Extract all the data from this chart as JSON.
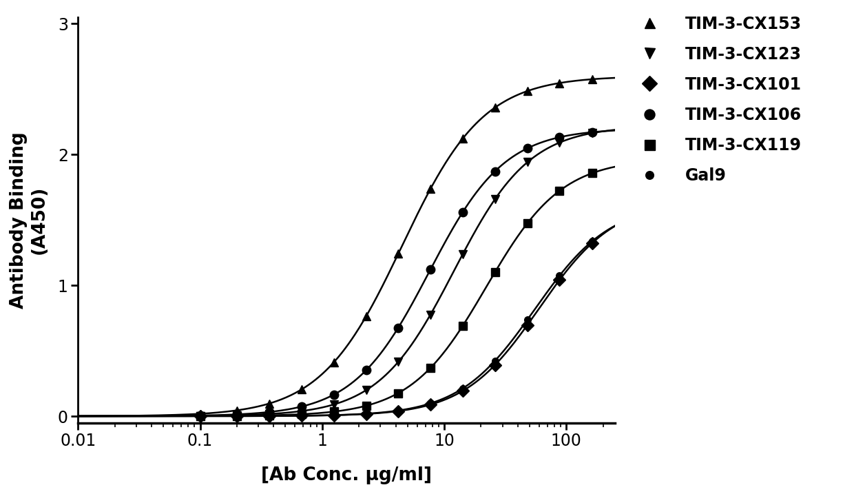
{
  "title": "",
  "xlabel": "[Ab Conc. μg/ml]",
  "ylabel": "Antibody Binding\n(A450)",
  "xlim": [
    0.01,
    250
  ],
  "ylim": [
    -0.05,
    3.05
  ],
  "yticks": [
    0,
    1,
    2,
    3
  ],
  "background_color": "#ffffff",
  "line_color": "#000000",
  "series": [
    {
      "label": "TIM-3-CX153",
      "marker": "^",
      "ec50": 4.5,
      "top": 2.6,
      "hill": 1.3
    },
    {
      "label": "TIM-3-CX123",
      "marker": "v",
      "ec50": 12.0,
      "top": 2.22,
      "hill": 1.4
    },
    {
      "label": "TIM-3-CX101",
      "marker": "D",
      "ec50": 60.0,
      "top": 1.65,
      "hill": 1.4
    },
    {
      "label": "TIM-3-CX106",
      "marker": "o",
      "ec50": 7.5,
      "top": 2.2,
      "hill": 1.4
    },
    {
      "label": "TIM-3-CX119",
      "marker": "s",
      "ec50": 22.0,
      "top": 1.97,
      "hill": 1.4
    },
    {
      "label": "Gal9",
      "marker": "o",
      "ec50": 55.0,
      "top": 1.63,
      "hill": 1.4
    }
  ],
  "data_points_x": [
    0.1,
    0.2,
    0.37,
    0.68,
    1.25,
    2.3,
    4.2,
    7.7,
    14.2,
    26.0,
    48.0,
    88.0,
    163.0
  ],
  "legend_fontsize": 17,
  "axis_fontsize": 19,
  "tick_fontsize": 17,
  "marker_size": 9,
  "linewidth": 1.8
}
